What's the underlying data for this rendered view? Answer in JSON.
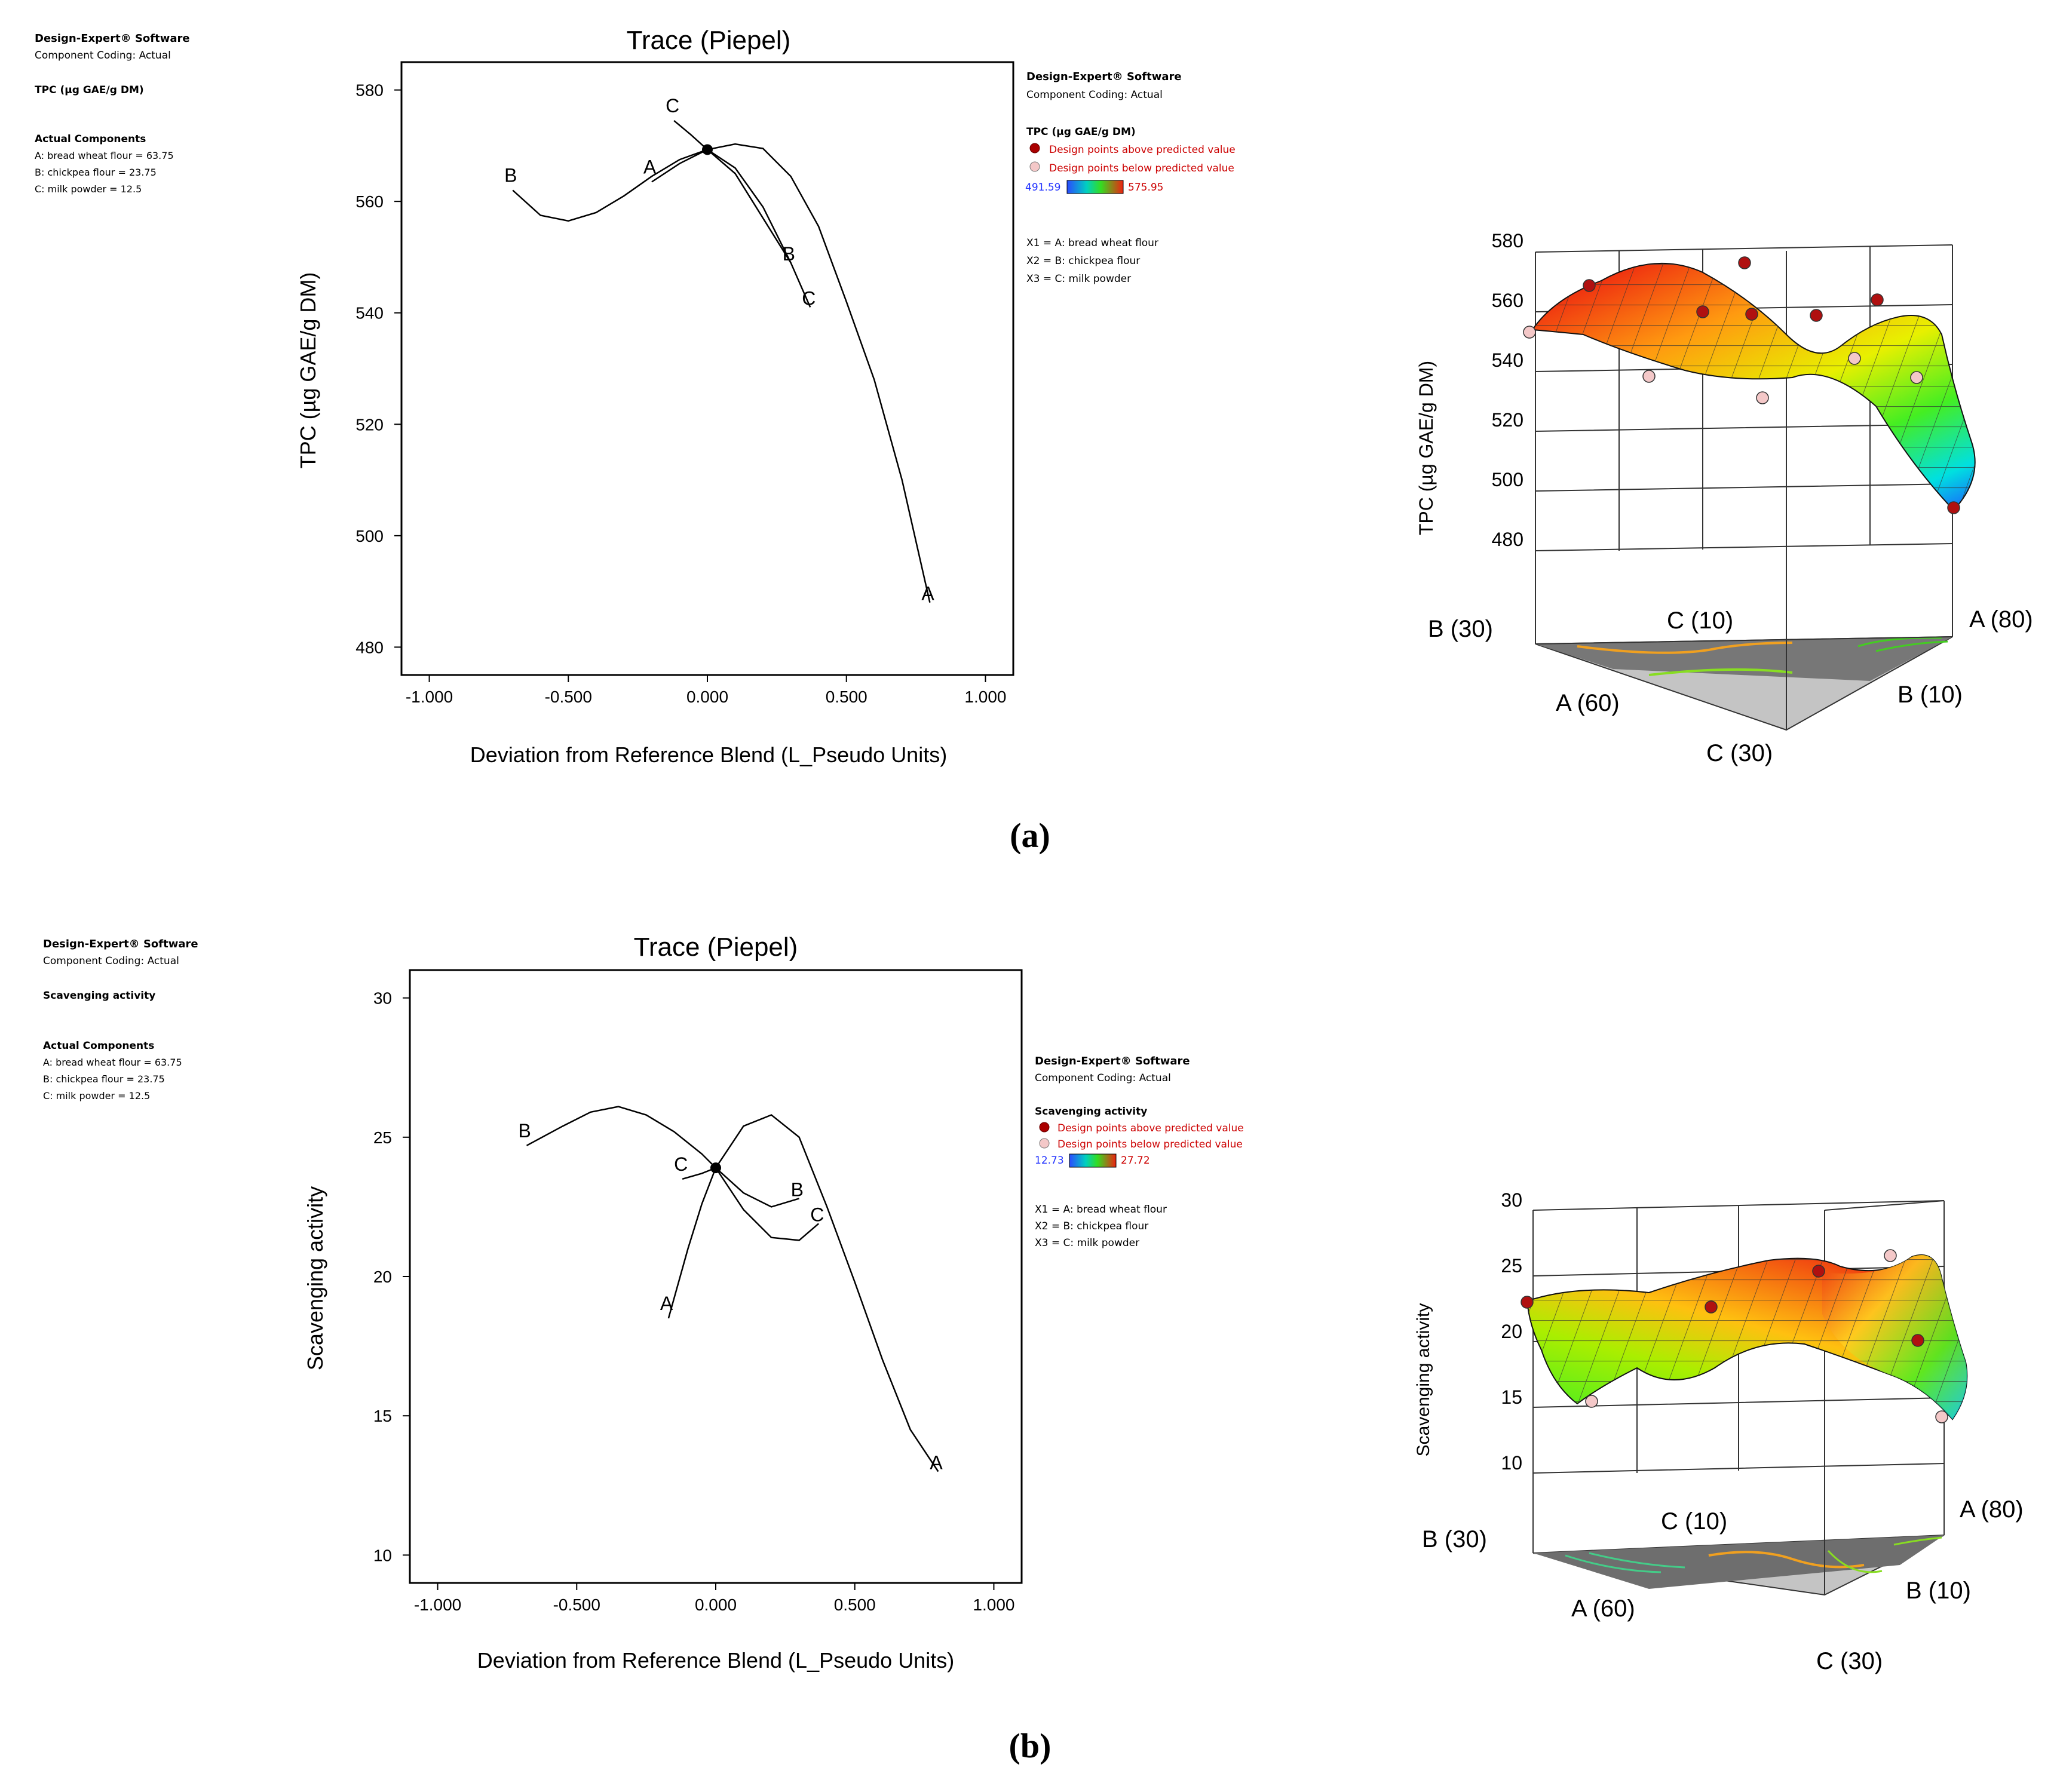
{
  "panels": [
    {
      "label": "(a)",
      "left_info": {
        "software": "Design-Expert® Software",
        "coding": "Component Coding: Actual",
        "response": "TPC (µg GAE/g DM)",
        "components_title": "Actual Components",
        "components": [
          "A: bread wheat flour = 63.75",
          "B: chickpea flour = 23.75",
          "C: milk powder = 12.5"
        ]
      },
      "right_info": {
        "software": "Design-Expert® Software",
        "coding": "Component Coding: Actual",
        "response": "TPC (µg GAE/g DM)",
        "above": "Design points above predicted value",
        "below": "Design points below predicted value",
        "range_low": "491.59",
        "range_high": "575.95",
        "factors": [
          "X1 = A: bread wheat flour",
          "X2 = B: chickpea flour",
          "X3 = C: milk powder"
        ]
      },
      "surface": {
        "ylabel": "TPC (µg GAE/g DM)",
        "ticks": [
          "580",
          "560",
          "540",
          "520",
          "500",
          "480"
        ],
        "vertices": {
          "b_left": "B (30)",
          "c_top": "C (10)",
          "a_right": "A (80)",
          "a_front": "A (60)",
          "b_front": "B (10)",
          "c_front": "C (30)"
        }
      }
    },
    {
      "label": "(b)",
      "left_info": {
        "software": "Design-Expert® Software",
        "coding": "Component Coding: Actual",
        "response": "Scavenging activity",
        "components_title": "Actual Components",
        "components": [
          "A: bread wheat flour = 63.75",
          "B: chickpea flour = 23.75",
          "C: milk powder = 12.5"
        ]
      },
      "right_info": {
        "software": "Design-Expert® Software",
        "coding": "Component Coding: Actual",
        "response": "Scavenging activity",
        "above": "Design points above predicted value",
        "below": "Design points below predicted value",
        "range_low": "12.73",
        "range_high": "27.72",
        "factors": [
          "X1 = A: bread wheat flour",
          "X2 = B: chickpea flour",
          "X3 = C: milk powder"
        ]
      },
      "surface": {
        "ylabel": "Scavenging activity",
        "ticks": [
          "30",
          "25",
          "20",
          "15",
          "10"
        ],
        "vertices": {
          "b_left": "B (30)",
          "c_top": "C (10)",
          "a_right": "A (80)",
          "a_front": "A (60)",
          "b_front": "B (10)",
          "c_front": "C (30)"
        }
      }
    }
  ],
  "chart_data": [
    {
      "type": "line",
      "title": "Trace (Piepel)",
      "xlabel": "Deviation from Reference Blend (L_Pseudo Units)",
      "ylabel": "TPC (µg GAE/g DM)",
      "xlim": [
        -1.1,
        1.1
      ],
      "ylim": [
        475,
        585
      ],
      "xticks": [
        -1.0,
        -0.5,
        0.0,
        0.5,
        1.0
      ],
      "xtick_labels": [
        "-1.000",
        "-0.500",
        "0.000",
        "0.500",
        "1.000"
      ],
      "yticks": [
        480,
        500,
        520,
        540,
        560,
        580
      ],
      "reference_point": {
        "x": 0,
        "y": 569.3
      },
      "series": [
        {
          "name": "A",
          "x": [
            -0.2,
            -0.1,
            0.0,
            0.1,
            0.2,
            0.3,
            0.4,
            0.5,
            0.6,
            0.7,
            0.8
          ],
          "y": [
            563.5,
            566.8,
            569.3,
            570.3,
            569.5,
            564.5,
            555.5,
            542,
            528,
            510,
            488
          ]
        },
        {
          "name": "B",
          "x": [
            -0.7,
            -0.6,
            -0.5,
            -0.4,
            -0.3,
            -0.2,
            -0.1,
            0.0,
            0.1,
            0.2,
            0.3
          ],
          "y": [
            562,
            557.5,
            556.5,
            558,
            561,
            564.5,
            567.5,
            569.3,
            566,
            559,
            549
          ]
        },
        {
          "name": "C",
          "x": [
            -0.12,
            -0.06,
            0.0,
            0.1,
            0.2,
            0.3,
            0.37
          ],
          "y": [
            574.5,
            572,
            569.3,
            565,
            557,
            549,
            541
          ]
        }
      ]
    },
    {
      "type": "line",
      "title": "Trace (Piepel)",
      "xlabel": "Deviation from Reference Blend (L_Pseudo Units)",
      "ylabel": "Scavenging activity",
      "xlim": [
        -1.1,
        1.1
      ],
      "ylim": [
        9,
        31
      ],
      "xticks": [
        -1.0,
        -0.5,
        0.0,
        0.5,
        1.0
      ],
      "xtick_labels": [
        "-1.000",
        "-0.500",
        "0.000",
        "0.500",
        "1.000"
      ],
      "yticks": [
        10,
        15,
        20,
        25,
        30
      ],
      "reference_point": {
        "x": 0,
        "y": 23.9
      },
      "series": [
        {
          "name": "A",
          "x": [
            -0.17,
            -0.1,
            -0.05,
            0.0,
            0.1,
            0.2,
            0.3,
            0.4,
            0.5,
            0.6,
            0.7,
            0.8
          ],
          "y": [
            18.5,
            21,
            22.6,
            23.9,
            25.4,
            25.8,
            25,
            22.5,
            19.8,
            17,
            14.5,
            13
          ]
        },
        {
          "name": "B",
          "x": [
            -0.68,
            -0.55,
            -0.45,
            -0.35,
            -0.25,
            -0.15,
            -0.05,
            0.0,
            0.1,
            0.2,
            0.3
          ],
          "y": [
            24.7,
            25.4,
            25.9,
            26.1,
            25.8,
            25.2,
            24.4,
            23.9,
            23,
            22.5,
            22.8
          ]
        },
        {
          "name": "C",
          "x": [
            -0.12,
            -0.05,
            0.0,
            0.1,
            0.2,
            0.3,
            0.37
          ],
          "y": [
            23.5,
            23.7,
            23.9,
            22.4,
            21.4,
            21.3,
            21.9
          ]
        }
      ]
    }
  ]
}
